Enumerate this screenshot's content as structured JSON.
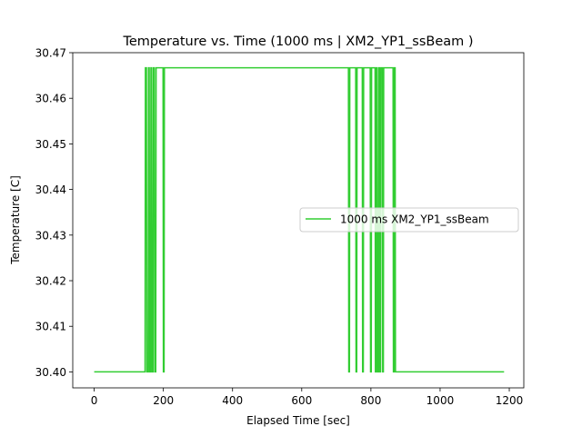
{
  "chart_data": {
    "type": "line",
    "title": "Temperature vs. Time (1000 ms | XM2_YP1_ssBeam )",
    "xlabel": "Elapsed Time [sec]",
    "ylabel": "Temperature [C]",
    "xlim": [
      -62,
      1242
    ],
    "ylim": [
      30.3965,
      30.47
    ],
    "xticks": [
      0,
      200,
      400,
      600,
      800,
      1000,
      1200
    ],
    "xtick_labels": [
      "0",
      "200",
      "400",
      "600",
      "800",
      "1000",
      "1200"
    ],
    "yticks": [
      30.4,
      30.41,
      30.42,
      30.43,
      30.44,
      30.45,
      30.46,
      30.47
    ],
    "ytick_labels": [
      "30.40",
      "30.41",
      "30.42",
      "30.43",
      "30.44",
      "30.45",
      "30.46",
      "30.47"
    ],
    "grid": false,
    "legend_position": "center-right",
    "series": [
      {
        "name": "1000 ms XM2_YP1_ssBeam",
        "color": "#32cd32",
        "x": [
          0,
          147,
          148,
          151,
          152,
          156,
          157,
          159,
          160,
          163,
          164,
          166,
          167,
          170,
          171,
          174,
          175,
          178,
          179,
          199,
          200,
          202,
          203,
          735,
          736,
          738,
          739,
          756,
          757,
          759,
          760,
          775,
          776,
          778,
          779,
          798,
          799,
          801,
          802,
          812,
          813,
          815,
          816,
          818,
          819,
          822,
          823,
          825,
          826,
          828,
          829,
          833,
          834,
          836,
          837,
          864,
          865,
          867,
          868,
          870,
          871,
          1185
        ],
        "y": [
          30.4,
          30.4,
          30.4667,
          30.4667,
          30.4,
          30.4,
          30.4667,
          30.4667,
          30.4,
          30.4,
          30.4667,
          30.4667,
          30.4,
          30.4,
          30.4667,
          30.4667,
          30.4,
          30.4,
          30.4667,
          30.4667,
          30.4,
          30.4,
          30.4667,
          30.4667,
          30.4,
          30.4,
          30.4667,
          30.4667,
          30.4,
          30.4,
          30.4667,
          30.4667,
          30.4,
          30.4,
          30.4667,
          30.4667,
          30.4,
          30.4,
          30.4667,
          30.4667,
          30.4,
          30.4,
          30.4667,
          30.4667,
          30.4,
          30.4,
          30.4667,
          30.4667,
          30.4,
          30.4,
          30.4667,
          30.4667,
          30.4,
          30.4,
          30.4667,
          30.4667,
          30.4,
          30.4,
          30.4667,
          30.4667,
          30.4,
          30.4
        ]
      }
    ]
  }
}
